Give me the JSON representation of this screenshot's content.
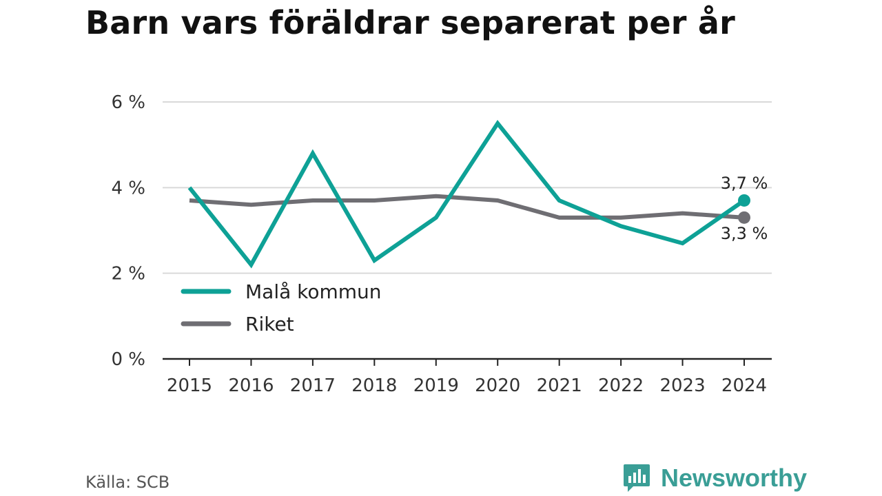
{
  "title": "Barn vars föräldrar separerat per år",
  "source": "Källa: SCB",
  "brand": {
    "name": "Newsworthy",
    "icon": "newsworthy-logo-icon"
  },
  "colors": {
    "series1": "#0ea196",
    "series2": "#6f6e73",
    "grid": "#d9d9d9",
    "axis": "#222222"
  },
  "chart_data": {
    "type": "line",
    "title": "Barn vars föräldrar separerat per år",
    "x": [
      2015,
      2016,
      2017,
      2018,
      2019,
      2020,
      2021,
      2022,
      2023,
      2024
    ],
    "x_tick_labels": [
      "2015",
      "2016",
      "2017",
      "2018",
      "2019",
      "2020",
      "2021",
      "2022",
      "2023",
      "2024"
    ],
    "ylim": [
      0,
      6
    ],
    "y_ticks": [
      0,
      2,
      4,
      6
    ],
    "y_tick_labels": [
      "0 %",
      "2 %",
      "4 %",
      "6 %"
    ],
    "grid": true,
    "legend_position": "bottom-left",
    "series": [
      {
        "name": "Malå kommun",
        "color": "#0ea196",
        "values": [
          4.0,
          2.2,
          4.8,
          2.3,
          3.3,
          5.5,
          3.7,
          3.1,
          2.7,
          3.7
        ],
        "end_label": "3,7 %"
      },
      {
        "name": "Riket",
        "color": "#6f6e73",
        "values": [
          3.7,
          3.6,
          3.7,
          3.7,
          3.8,
          3.7,
          3.3,
          3.3,
          3.4,
          3.3
        ],
        "end_label": "3,3 %"
      }
    ]
  }
}
